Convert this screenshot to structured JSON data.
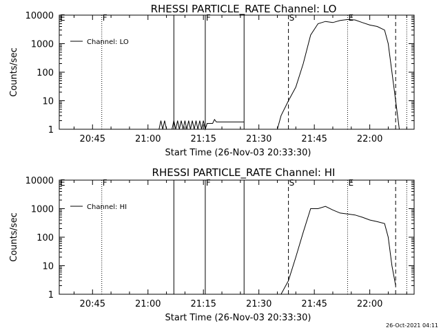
{
  "stamp": "26-Oct-2021 04:11",
  "chart_data": [
    {
      "type": "line",
      "title": "RHESSI PARTICLE_RATE Channel: LO",
      "xlabel": "Start Time (26-Nov-03 20:33:30)",
      "ylabel": "Counts/sec",
      "scale_y": "log",
      "ylim": [
        1,
        10000
      ],
      "xlim": [
        "20:36",
        "22:12"
      ],
      "x_ticks": [
        "20:45",
        "21:00",
        "21:15",
        "21:30",
        "21:45",
        "22:00"
      ],
      "y_ticks": [
        "1",
        "10",
        "100",
        "1000",
        "10000"
      ],
      "legend": {
        "position": "top-left",
        "entries": [
          "Channel: LO"
        ]
      },
      "markers": [
        {
          "label": "E",
          "time": "20:36",
          "style": "none"
        },
        {
          "label": "F",
          "time": "20:47.5",
          "style": "dotted"
        },
        {
          "label": "",
          "time": "21:07",
          "style": "solid"
        },
        {
          "label": "F",
          "time": "21:15.5",
          "style": "solid"
        },
        {
          "label": "",
          "time": "21:26",
          "style": "solid"
        },
        {
          "label": "S",
          "time": "21:38",
          "style": "dashed"
        },
        {
          "label": "E",
          "time": "21:54",
          "style": "dotted"
        },
        {
          "label": "",
          "time": "22:07",
          "style": "dashed"
        },
        {
          "label": "",
          "time": "22:10",
          "style": "dotted"
        }
      ],
      "series": [
        {
          "name": "Channel: LO",
          "segments": [
            [
              [
                "21:03",
                1
              ],
              [
                "21:03.5",
                2
              ],
              [
                "21:04",
                1
              ],
              [
                "21:04.5",
                2
              ],
              [
                "21:05",
                1
              ],
              [
                "21:06.5",
                1
              ],
              [
                "21:07",
                2
              ],
              [
                "21:07.5",
                1
              ],
              [
                "21:08",
                2
              ],
              [
                "21:08.5",
                1
              ],
              [
                "21:09",
                2
              ],
              [
                "21:09.5",
                1
              ],
              [
                "21:10",
                2
              ],
              [
                "21:10.5",
                1
              ],
              [
                "21:11",
                2
              ],
              [
                "21:11.5",
                1
              ],
              [
                "21:12",
                2
              ],
              [
                "21:12.5",
                1
              ],
              [
                "21:13",
                2
              ],
              [
                "21:13.5",
                1
              ],
              [
                "21:14",
                2
              ],
              [
                "21:14.5",
                1
              ],
              [
                "21:15",
                2
              ],
              [
                "21:15.5",
                1
              ],
              [
                "21:16",
                1.6
              ],
              [
                "21:17.5",
                1.6
              ],
              [
                "21:18",
                2.2
              ],
              [
                "21:18.5",
                1.8
              ],
              [
                "21:19",
                1.8
              ],
              [
                "21:26",
                1.8
              ]
            ],
            [
              [
                "21:35",
                1
              ],
              [
                "21:36",
                3
              ],
              [
                "21:38",
                10
              ],
              [
                "21:40",
                30
              ],
              [
                "21:42",
                200
              ],
              [
                "21:44",
                2000
              ],
              [
                "21:46",
                5000
              ],
              [
                "21:48",
                6000
              ],
              [
                "21:50",
                5500
              ],
              [
                "21:52",
                6500
              ],
              [
                "21:54",
                7000
              ],
              [
                "21:56",
                6800
              ],
              [
                "21:58",
                5500
              ],
              [
                "22:00",
                4500
              ],
              [
                "22:02",
                4000
              ],
              [
                "22:04",
                3000
              ],
              [
                "22:05",
                1000
              ],
              [
                "22:06",
                100
              ],
              [
                "22:07",
                10
              ],
              [
                "22:08",
                1
              ]
            ]
          ]
        }
      ]
    },
    {
      "type": "line",
      "title": "RHESSI PARTICLE_RATE Channel: HI",
      "xlabel": "Start Time (26-Nov-03 20:33:30)",
      "ylabel": "Counts/sec",
      "scale_y": "log",
      "ylim": [
        1,
        10000
      ],
      "xlim": [
        "20:36",
        "22:12"
      ],
      "x_ticks": [
        "20:45",
        "21:00",
        "21:15",
        "21:30",
        "21:45",
        "22:00"
      ],
      "y_ticks": [
        "1",
        "10",
        "100",
        "1000",
        "10000"
      ],
      "legend": {
        "position": "top-left",
        "entries": [
          "Channel: HI"
        ]
      },
      "markers": [
        {
          "label": "E",
          "time": "20:36",
          "style": "none"
        },
        {
          "label": "F",
          "time": "20:47.5",
          "style": "dotted"
        },
        {
          "label": "",
          "time": "21:07",
          "style": "solid"
        },
        {
          "label": "F",
          "time": "21:15.5",
          "style": "solid"
        },
        {
          "label": "",
          "time": "21:26",
          "style": "solid"
        },
        {
          "label": "S",
          "time": "21:38",
          "style": "dashed"
        },
        {
          "label": "E",
          "time": "21:54",
          "style": "dotted"
        },
        {
          "label": "",
          "time": "22:07",
          "style": "dashed"
        },
        {
          "label": "",
          "time": "22:10",
          "style": "dotted"
        }
      ],
      "series": [
        {
          "name": "Channel: HI",
          "segments": [
            [
              [
                "21:36",
                1
              ],
              [
                "21:38",
                3
              ],
              [
                "21:40",
                20
              ],
              [
                "21:42",
                150
              ],
              [
                "21:44",
                1000
              ],
              [
                "21:46",
                1000
              ],
              [
                "21:48",
                1200
              ],
              [
                "21:50",
                900
              ],
              [
                "21:52",
                700
              ],
              [
                "21:54",
                650
              ],
              [
                "21:56",
                600
              ],
              [
                "21:58",
                500
              ],
              [
                "22:00",
                400
              ],
              [
                "22:02",
                350
              ],
              [
                "22:04",
                300
              ],
              [
                "22:05",
                100
              ],
              [
                "22:06",
                10
              ],
              [
                "22:07",
                2
              ]
            ]
          ]
        }
      ]
    }
  ]
}
